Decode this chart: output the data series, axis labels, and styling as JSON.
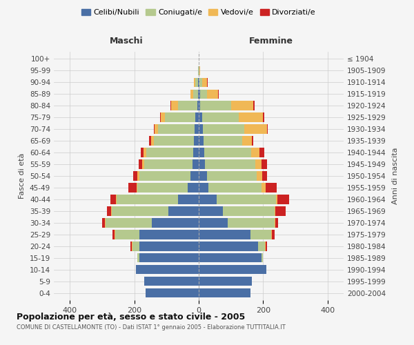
{
  "age_groups": [
    "0-4",
    "5-9",
    "10-14",
    "15-19",
    "20-24",
    "25-29",
    "30-34",
    "35-39",
    "40-44",
    "45-49",
    "50-54",
    "55-59",
    "60-64",
    "65-69",
    "70-74",
    "75-79",
    "80-84",
    "85-89",
    "90-94",
    "95-99",
    "100+"
  ],
  "birth_years": [
    "2000-2004",
    "1995-1999",
    "1990-1994",
    "1985-1989",
    "1980-1984",
    "1975-1979",
    "1970-1974",
    "1965-1969",
    "1960-1964",
    "1955-1959",
    "1950-1954",
    "1945-1949",
    "1940-1944",
    "1935-1939",
    "1930-1934",
    "1925-1929",
    "1920-1924",
    "1915-1919",
    "1910-1914",
    "1905-1909",
    "≤ 1904"
  ],
  "male": {
    "celibi": [
      165,
      170,
      195,
      185,
      185,
      185,
      145,
      95,
      65,
      35,
      25,
      20,
      18,
      14,
      12,
      10,
      5,
      3,
      2,
      0,
      0
    ],
    "coniugati": [
      0,
      0,
      0,
      5,
      20,
      75,
      145,
      175,
      190,
      155,
      160,
      150,
      145,
      125,
      115,
      95,
      60,
      15,
      8,
      2,
      0
    ],
    "vedovi": [
      0,
      0,
      0,
      0,
      3,
      2,
      2,
      2,
      2,
      3,
      5,
      5,
      8,
      8,
      10,
      12,
      20,
      8,
      5,
      0,
      0
    ],
    "divorziati": [
      0,
      0,
      0,
      0,
      5,
      5,
      8,
      12,
      18,
      25,
      13,
      12,
      10,
      8,
      2,
      3,
      2,
      0,
      0,
      0,
      0
    ]
  },
  "female": {
    "nubili": [
      160,
      165,
      210,
      195,
      185,
      160,
      90,
      75,
      55,
      30,
      25,
      20,
      18,
      15,
      12,
      10,
      5,
      5,
      2,
      0,
      0
    ],
    "coniugate": [
      0,
      0,
      0,
      5,
      20,
      65,
      145,
      160,
      185,
      165,
      155,
      155,
      145,
      120,
      130,
      115,
      95,
      20,
      8,
      2,
      0
    ],
    "vedove": [
      0,
      0,
      0,
      0,
      2,
      2,
      2,
      3,
      5,
      12,
      18,
      20,
      25,
      30,
      70,
      75,
      70,
      35,
      15,
      2,
      0
    ],
    "divorziate": [
      0,
      0,
      0,
      0,
      5,
      8,
      10,
      32,
      35,
      35,
      15,
      18,
      15,
      5,
      2,
      3,
      3,
      2,
      2,
      0,
      0
    ]
  },
  "colors": {
    "celibi": "#4a6fa5",
    "coniugati": "#b5c98e",
    "vedovi": "#f0b856",
    "divorziati": "#cc2222"
  },
  "xlim": 450,
  "title": "Popolazione per età, sesso e stato civile - 2005",
  "subtitle": "COMUNE DI CASTELLAMONTE (TO) - Dati ISTAT 1° gennaio 2005 - Elaborazione TUTTITALIA.IT",
  "ylabel_left": "Fasce di età",
  "ylabel_right": "Anni di nascita",
  "xlabel_left": "Maschi",
  "xlabel_right": "Femmine"
}
